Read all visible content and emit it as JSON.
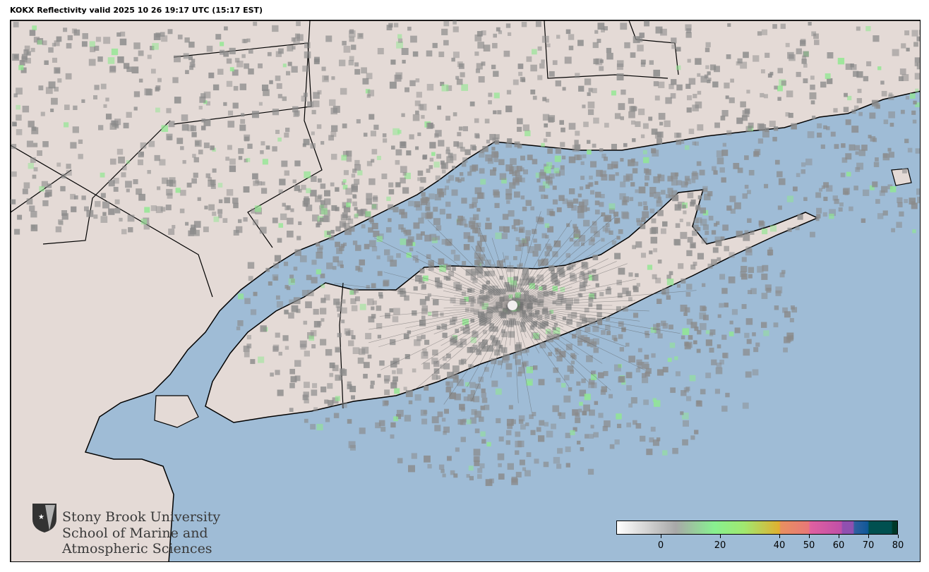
{
  "title": "KOKX Reflectivity valid 2025 10 26 19:17 UTC (15:17 EST)",
  "map": {
    "radar_site": "KOKX",
    "colors": {
      "water": "#9fbcd6",
      "land": "#e4dad6",
      "border": "#000000",
      "echo_gray": "#8a8a8a",
      "echo_green": "#90e890"
    }
  },
  "colorbar": {
    "range": [
      -15,
      80
    ],
    "ticks": [
      {
        "value": 0,
        "label": "0"
      },
      {
        "value": 20,
        "label": "20"
      },
      {
        "value": 40,
        "label": "40"
      },
      {
        "value": 50,
        "label": "50"
      },
      {
        "value": 60,
        "label": "60"
      },
      {
        "value": 70,
        "label": "70"
      },
      {
        "value": 80,
        "label": "80"
      }
    ],
    "stops": [
      {
        "value": -15,
        "color": "#ffffff"
      },
      {
        "value": 5,
        "color": "#a8a8a8"
      },
      {
        "value": 18,
        "color": "#88f090"
      },
      {
        "value": 28,
        "color": "#a0e870"
      },
      {
        "value": 40,
        "color": "#e0b030"
      },
      {
        "value": 40.5,
        "color": "#e89060"
      },
      {
        "value": 50,
        "color": "#e87878"
      },
      {
        "value": 50.5,
        "color": "#e060a0"
      },
      {
        "value": 61,
        "color": "#c050a8"
      },
      {
        "value": 61.5,
        "color": "#9050b0"
      },
      {
        "value": 65,
        "color": "#9050b0"
      },
      {
        "value": 65.5,
        "color": "#3060a0"
      },
      {
        "value": 70,
        "color": "#105898"
      },
      {
        "value": 70.5,
        "color": "#005050"
      },
      {
        "value": 78,
        "color": "#005050"
      },
      {
        "value": 78.5,
        "color": "#003828"
      }
    ]
  },
  "logo": {
    "line1": "Stony Brook University",
    "line2": "School of Marine and",
    "line3": "Atmospheric Sciences"
  }
}
